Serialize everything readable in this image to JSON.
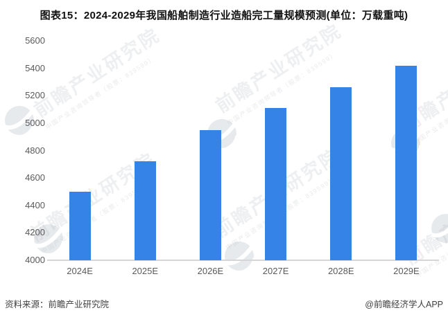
{
  "page": {
    "title": "图表15：2024-2029年我国船舶制造行业造船完工量规模预测(单位：万载重吨)"
  },
  "watermark": {
    "brand": "前瞻产业研究院",
    "tagline": "中国产业咨询领导者（股票：839599）"
  },
  "footer": {
    "source": "资料来源：前瞻产业研究院",
    "credit": "@前瞻经济学人APP"
  },
  "chart_data": {
    "type": "bar",
    "title": "图表15：2024-2029年我国船舶制造行业造船完工量规模预测(单位：万载重吨)",
    "unit": "万载重吨",
    "categories": [
      "2024E",
      "2025E",
      "2026E",
      "2027E",
      "2028E",
      "2029E"
    ],
    "values": [
      4500,
      4720,
      4950,
      5110,
      5260,
      5420
    ],
    "xlabel": "",
    "ylabel": "",
    "ylim": [
      4000,
      5600
    ],
    "ytick_step": 200,
    "bar_color": "#3583e6",
    "grid": false,
    "legend": false
  }
}
